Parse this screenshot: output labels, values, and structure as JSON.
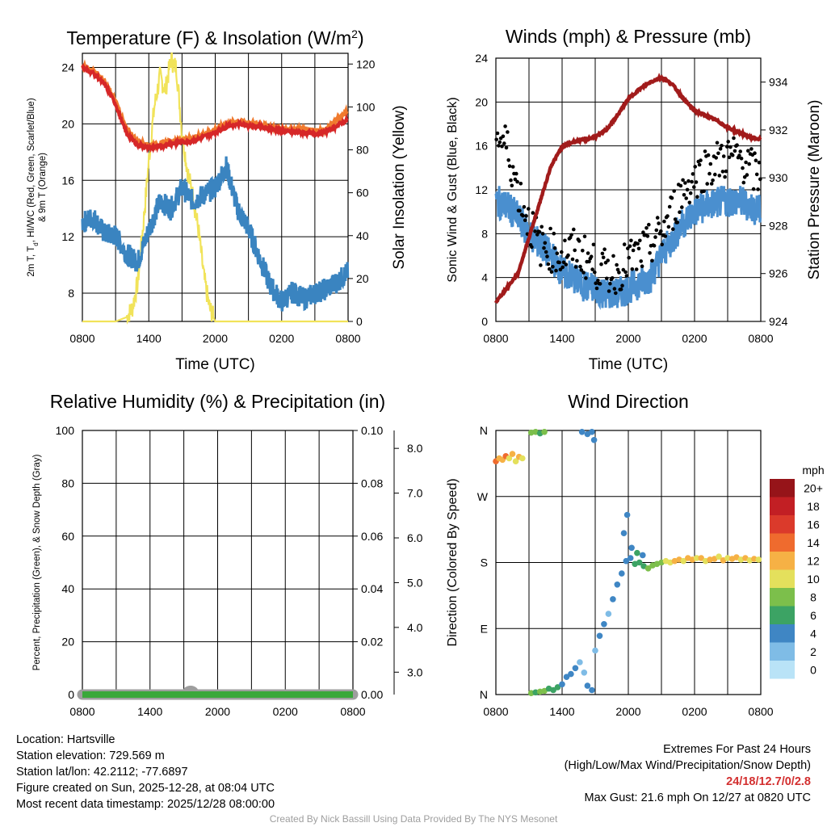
{
  "chart_data": [
    {
      "type": "line",
      "title": "Temperature (F) & Insolation (W/m²)",
      "xlabel": "Time (UTC)",
      "ylabel": "2m T, Td, HI/WC (Red, Green, Scarlet/Blue) & 9m T (Orange)",
      "ylabel_line1": "2m T, T",
      "ylabel_sub": "d",
      "ylabel_line1_rest": ", HI/WC (Red, Green, Scarlet/Blue)",
      "ylabel_line2": "& 9m T (Orange)",
      "y2label": "Solar Insolation (Yellow)",
      "xticks": [
        "0800",
        "1400",
        "2000",
        "0200",
        "0800"
      ],
      "x_range_hours": [
        0,
        24
      ],
      "ylim": [
        6,
        25
      ],
      "yticks": [
        8,
        12,
        16,
        20,
        24
      ],
      "y2lim": [
        0,
        125
      ],
      "y2ticks": [
        0,
        20,
        40,
        60,
        80,
        100,
        120
      ],
      "series": [
        {
          "name": "2m T",
          "color": "#d62728",
          "axis": "left",
          "x": [
            0,
            1,
            2,
            3,
            3.5,
            4,
            5,
            6,
            7,
            8,
            9,
            10,
            11,
            12,
            13,
            14,
            15,
            16,
            17,
            18,
            19,
            20,
            21,
            22,
            23,
            24
          ],
          "y": [
            24,
            23.6,
            22.8,
            21.4,
            20.3,
            19.3,
            18.5,
            18.3,
            18.4,
            18.6,
            18.7,
            18.8,
            19.1,
            19.4,
            19.8,
            20,
            19.9,
            19.8,
            19.6,
            19.5,
            19.4,
            19.4,
            19.3,
            19.4,
            19.9,
            20.3
          ]
        },
        {
          "name": "9m T",
          "color": "#f07a2e",
          "axis": "left",
          "x": [
            0,
            1,
            2,
            3,
            3.5,
            4,
            5,
            6,
            7,
            8,
            9,
            10,
            11,
            12,
            13,
            14,
            15,
            16,
            17,
            18,
            19,
            20,
            21,
            22,
            23,
            24
          ],
          "y": [
            24.1,
            23.8,
            23,
            21.6,
            20.6,
            19.6,
            18.8,
            18.5,
            18.6,
            18.8,
            18.9,
            19,
            19.3,
            19.6,
            20,
            20.2,
            20.1,
            20,
            19.8,
            19.7,
            19.6,
            19.6,
            19.5,
            19.6,
            20.3,
            21
          ]
        },
        {
          "name": "Wind Chill",
          "color": "#3a84c0",
          "axis": "left",
          "x": [
            0,
            1,
            2,
            3,
            4,
            5,
            6,
            7,
            8,
            9,
            10,
            11,
            12,
            13,
            14,
            15,
            16,
            17,
            18,
            19,
            20,
            21,
            22,
            23,
            24
          ],
          "y": [
            13,
            13.4,
            12.2,
            12.1,
            10.8,
            10.2,
            12.5,
            14.5,
            14,
            15.5,
            14.5,
            15,
            15.5,
            17,
            14,
            12.6,
            10.5,
            8.5,
            7.4,
            8.1,
            7.6,
            8,
            8.3,
            8.8,
            9.5
          ]
        },
        {
          "name": "Solar Insolation",
          "color": "#f1e35a",
          "axis": "right",
          "x": [
            0,
            3,
            4,
            4.5,
            5,
            5.5,
            6,
            6.5,
            7,
            7.5,
            8,
            8.5,
            9,
            9.5,
            10,
            10.5,
            11,
            11.5,
            12,
            13,
            24
          ],
          "y": [
            0,
            0,
            2,
            6,
            18,
            45,
            75,
            100,
            114,
            108,
            122,
            118,
            88,
            70,
            58,
            42,
            20,
            6,
            0,
            0,
            0
          ]
        }
      ]
    },
    {
      "type": "line",
      "title": "Winds (mph) & Pressure (mb)",
      "xlabel": "Time (UTC)",
      "ylabel": "Sonic Wind & Gust (Blue, Black)",
      "y2label": "Station Pressure (Maroon)",
      "xticks": [
        "0800",
        "1400",
        "2000",
        "0200",
        "0800"
      ],
      "x_range_hours": [
        0,
        24
      ],
      "ylim": [
        0,
        24
      ],
      "yticks": [
        0,
        4,
        8,
        12,
        16,
        20,
        24
      ],
      "y2lim": [
        924,
        935
      ],
      "y2ticks": [
        924,
        926,
        928,
        930,
        932,
        934
      ],
      "series": [
        {
          "name": "Sonic Wind",
          "color": "#4a8fcf",
          "axis": "left",
          "x": [
            0,
            1,
            2,
            3,
            4,
            5,
            6,
            7,
            8,
            9,
            10,
            11,
            12,
            13,
            14,
            15,
            16,
            17,
            18,
            19,
            20,
            21,
            22,
            23,
            24
          ],
          "y": [
            11,
            10.5,
            9.5,
            8,
            7,
            6,
            4.5,
            4,
            3.2,
            3,
            2.5,
            2.5,
            3,
            3.5,
            4,
            6,
            7.5,
            9,
            10,
            10.5,
            10.8,
            11,
            11,
            10.5,
            10
          ]
        },
        {
          "name": "Gust",
          "color": "#000000",
          "axis": "left",
          "style": "dots",
          "x": [
            0,
            1,
            2,
            3,
            4,
            5,
            6,
            7,
            8,
            9,
            10,
            11,
            12,
            13,
            14,
            15,
            16,
            17,
            18,
            19,
            20,
            21,
            22,
            23,
            24
          ],
          "y": [
            17,
            16,
            12,
            9,
            7,
            6.5,
            6,
            6.5,
            6,
            5,
            4.5,
            4.5,
            5.5,
            6,
            7,
            8,
            10,
            12,
            13,
            14,
            14.5,
            15,
            15,
            14,
            13
          ]
        },
        {
          "name": "Station Pressure",
          "color": "#a11b1b",
          "axis": "right",
          "x": [
            0,
            1,
            2,
            3,
            4,
            5,
            6,
            7,
            8,
            9,
            10,
            11,
            12,
            13,
            14,
            15,
            16,
            17,
            18,
            19,
            20,
            21,
            22,
            23,
            24
          ],
          "y": [
            924.8,
            925.4,
            926,
            927.5,
            929,
            930.5,
            931.3,
            931.5,
            931.6,
            931.7,
            932,
            932.6,
            933.3,
            933.7,
            934,
            934.2,
            933.9,
            933.3,
            932.8,
            932.6,
            932.4,
            932.1,
            931.9,
            931.7,
            931.6
          ]
        }
      ]
    },
    {
      "type": "line",
      "title": "Relative Humidity (%) & Precipitation (in)",
      "xlabel": "",
      "ylabel": "Percent, Precipitation (Green), & Snow Depth (Gray)",
      "xticks": [
        "0800",
        "1400",
        "2000",
        "0200",
        "0800"
      ],
      "x_range_hours": [
        0,
        24
      ],
      "ylim": [
        0,
        100
      ],
      "yticks": [
        0,
        20,
        40,
        60,
        80,
        100
      ],
      "y2lim": [
        0,
        0.1
      ],
      "y2ticks": [
        "0.00",
        "0.02",
        "0.04",
        "0.06",
        "0.08",
        "0.10"
      ],
      "y3lim": [
        2.5,
        8.4
      ],
      "y3ticks": [
        "3.0",
        "4.0",
        "5.0",
        "6.0",
        "7.0",
        "8.0"
      ],
      "series": [
        {
          "name": "Snow Depth",
          "color": "#9e9e9e",
          "axis": "right",
          "x": [
            0,
            24
          ],
          "y": [
            0,
            0
          ]
        },
        {
          "name": "Precipitation",
          "color": "#3aa83a",
          "axis": "right",
          "x": [
            0,
            24
          ],
          "y": [
            0,
            0
          ]
        }
      ]
    },
    {
      "type": "scatter",
      "title": "Wind Direction",
      "xlabel": "",
      "ylabel": "Direction (Colored By Speed)",
      "xticks": [
        "0800",
        "1400",
        "2000",
        "0200",
        "0800"
      ],
      "x_range_hours": [
        0,
        24
      ],
      "ylim": [
        0,
        360
      ],
      "yticks": [
        "N",
        "E",
        "S",
        "W",
        "N"
      ],
      "colorbar_title": "mph",
      "colorbar": [
        {
          "label": "0",
          "color": "#b9e3f7"
        },
        {
          "label": "2",
          "color": "#7fbce6"
        },
        {
          "label": "4",
          "color": "#3f86c4"
        },
        {
          "label": "6",
          "color": "#3ca364"
        },
        {
          "label": "8",
          "color": "#7cbf4b"
        },
        {
          "label": "10",
          "color": "#e4e05c"
        },
        {
          "label": "12",
          "color": "#f6b145"
        },
        {
          "label": "14",
          "color": "#ef6b2e"
        },
        {
          "label": "16",
          "color": "#db3a2b"
        },
        {
          "label": "18",
          "color": "#c21f24"
        },
        {
          "label": "20+",
          "color": "#961419"
        }
      ],
      "points": [
        {
          "x": 0.0,
          "dir": 318,
          "speed": 14
        },
        {
          "x": 0.3,
          "dir": 322,
          "speed": 11
        },
        {
          "x": 0.6,
          "dir": 320,
          "speed": 12
        },
        {
          "x": 0.9,
          "dir": 325,
          "speed": 13
        },
        {
          "x": 1.2,
          "dir": 322,
          "speed": 10
        },
        {
          "x": 1.5,
          "dir": 328,
          "speed": 12
        },
        {
          "x": 1.8,
          "dir": 318,
          "speed": 10
        },
        {
          "x": 2.1,
          "dir": 324,
          "speed": 11
        },
        {
          "x": 2.4,
          "dir": 322,
          "speed": 9
        },
        {
          "x": 3.2,
          "dir": 357,
          "speed": 7
        },
        {
          "x": 3.6,
          "dir": 358,
          "speed": 8
        },
        {
          "x": 4.0,
          "dir": 356,
          "speed": 6
        },
        {
          "x": 4.4,
          "dir": 358,
          "speed": 7
        },
        {
          "x": 7.8,
          "dir": 358,
          "speed": 3
        },
        {
          "x": 8.3,
          "dir": 355,
          "speed": 3
        },
        {
          "x": 8.7,
          "dir": 358,
          "speed": 4
        },
        {
          "x": 8.9,
          "dir": 347,
          "speed": 3
        },
        {
          "x": 3.2,
          "dir": 2,
          "speed": 8
        },
        {
          "x": 3.6,
          "dir": 3,
          "speed": 6
        },
        {
          "x": 4.0,
          "dir": 4,
          "speed": 7
        },
        {
          "x": 4.4,
          "dir": 5,
          "speed": 8
        },
        {
          "x": 4.8,
          "dir": 8,
          "speed": 6
        },
        {
          "x": 5.2,
          "dir": 6,
          "speed": 5
        },
        {
          "x": 5.6,
          "dir": 10,
          "speed": 5
        },
        {
          "x": 6.0,
          "dir": 14,
          "speed": 4
        },
        {
          "x": 6.4,
          "dir": 24,
          "speed": 4
        },
        {
          "x": 6.8,
          "dir": 28,
          "speed": 3
        },
        {
          "x": 7.2,
          "dir": 36,
          "speed": 3
        },
        {
          "x": 7.6,
          "dir": 44,
          "speed": 2
        },
        {
          "x": 8.0,
          "dir": 30,
          "speed": 2
        },
        {
          "x": 8.3,
          "dir": 12,
          "speed": 4
        },
        {
          "x": 8.7,
          "dir": 6,
          "speed": 3
        },
        {
          "x": 9.0,
          "dir": 60,
          "speed": 2
        },
        {
          "x": 9.4,
          "dir": 80,
          "speed": 3
        },
        {
          "x": 9.8,
          "dir": 96,
          "speed": 3
        },
        {
          "x": 10.2,
          "dir": 110,
          "speed": 2
        },
        {
          "x": 10.6,
          "dir": 130,
          "speed": 3
        },
        {
          "x": 11.0,
          "dir": 150,
          "speed": 3
        },
        {
          "x": 11.4,
          "dir": 165,
          "speed": 4
        },
        {
          "x": 11.8,
          "dir": 182,
          "speed": 3
        },
        {
          "x": 12.2,
          "dir": 186,
          "speed": 4
        },
        {
          "x": 12.6,
          "dir": 178,
          "speed": 6
        },
        {
          "x": 13.0,
          "dir": 180,
          "speed": 5
        },
        {
          "x": 13.4,
          "dir": 175,
          "speed": 6
        },
        {
          "x": 13.8,
          "dir": 172,
          "speed": 7
        },
        {
          "x": 14.2,
          "dir": 176,
          "speed": 8
        },
        {
          "x": 14.6,
          "dir": 178,
          "speed": 8
        },
        {
          "x": 15.0,
          "dir": 180,
          "speed": 7
        },
        {
          "x": 15.4,
          "dir": 182,
          "speed": 9
        },
        {
          "x": 15.8,
          "dir": 180,
          "speed": 10
        },
        {
          "x": 16.2,
          "dir": 182,
          "speed": 11
        },
        {
          "x": 16.6,
          "dir": 184,
          "speed": 12
        },
        {
          "x": 17.0,
          "dir": 182,
          "speed": 10
        },
        {
          "x": 17.4,
          "dir": 186,
          "speed": 11
        },
        {
          "x": 17.8,
          "dir": 184,
          "speed": 12
        },
        {
          "x": 18.2,
          "dir": 186,
          "speed": 10
        },
        {
          "x": 18.6,
          "dir": 186,
          "speed": 11
        },
        {
          "x": 19.0,
          "dir": 182,
          "speed": 10
        },
        {
          "x": 19.4,
          "dir": 184,
          "speed": 12
        },
        {
          "x": 19.8,
          "dir": 185,
          "speed": 11
        },
        {
          "x": 20.2,
          "dir": 188,
          "speed": 10
        },
        {
          "x": 20.6,
          "dir": 183,
          "speed": 11
        },
        {
          "x": 21.0,
          "dir": 186,
          "speed": 10
        },
        {
          "x": 21.4,
          "dir": 185,
          "speed": 12
        },
        {
          "x": 21.8,
          "dir": 187,
          "speed": 11
        },
        {
          "x": 22.2,
          "dir": 184,
          "speed": 10
        },
        {
          "x": 22.6,
          "dir": 186,
          "speed": 11
        },
        {
          "x": 23.0,
          "dir": 183,
          "speed": 10
        },
        {
          "x": 23.4,
          "dir": 185,
          "speed": 11
        },
        {
          "x": 23.8,
          "dir": 184,
          "speed": 10
        },
        {
          "x": 11.6,
          "dir": 220,
          "speed": 4
        },
        {
          "x": 11.9,
          "dir": 245,
          "speed": 3
        },
        {
          "x": 12.3,
          "dir": 200,
          "speed": 4
        },
        {
          "x": 12.8,
          "dir": 193,
          "speed": 5
        },
        {
          "x": 13.3,
          "dir": 190,
          "speed": 4
        }
      ]
    }
  ],
  "footer": {
    "location": "Location: Hartsville",
    "elevation": "Station elevation: 729.569 m",
    "latlon": "Station lat/lon: 42.2112; -77.6897",
    "created": "Figure created on Sun, 2025-12-28, at 08:04 UTC",
    "recent": "Most recent data timestamp: 2025/12/28 08:00:00",
    "extremes_title": "Extremes For Past 24 Hours",
    "extremes_legend": "(High/Low/Max Wind/Precipitation/Snow Depth)",
    "extremes_values": "24/18/12.7/0/2.8",
    "max_gust": "Max Gust: 21.6 mph On 12/27 at 0820 UTC",
    "credit": "Created By Nick Bassill Using Data Provided By The NYS Mesonet"
  }
}
